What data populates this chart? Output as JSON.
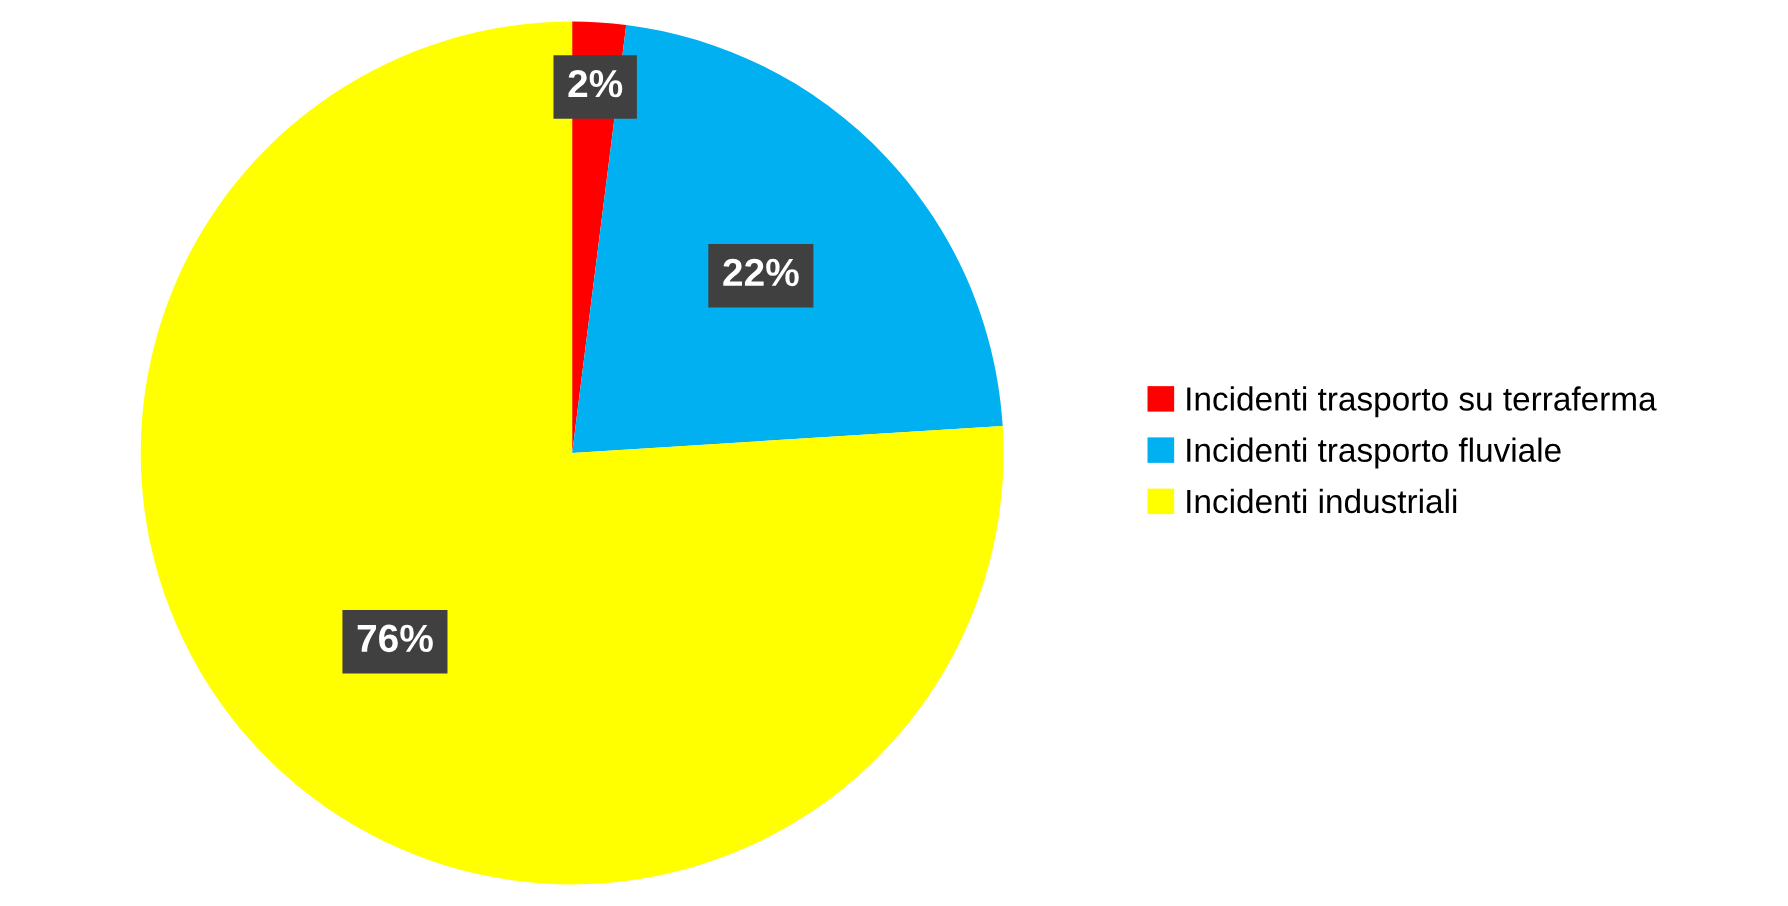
{
  "chart_data": {
    "type": "pie",
    "categories": [
      "Incidenti trasporto su terraferma",
      "Incidenti trasporto fluviale",
      "Incidenti industriali"
    ],
    "values": [
      2,
      22,
      76
    ],
    "colors": [
      "#ff0000",
      "#00b0f0",
      "#ffff00"
    ],
    "value_labels": [
      "2%",
      "22%",
      "76%"
    ],
    "legend": "right"
  }
}
